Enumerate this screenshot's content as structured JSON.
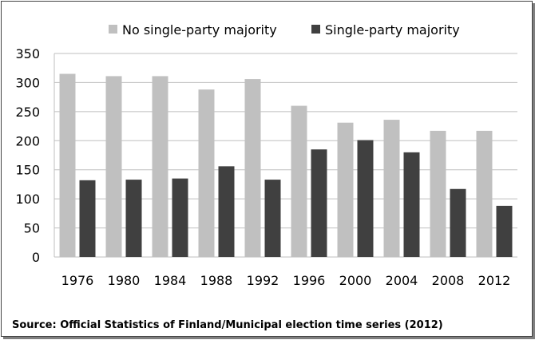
{
  "chart_data": {
    "type": "bar",
    "categories": [
      "1976",
      "1980",
      "1984",
      "1988",
      "1992",
      "1996",
      "2000",
      "2004",
      "2008",
      "2012"
    ],
    "series": [
      {
        "name": "No single-party majority",
        "values": [
          315,
          311,
          311,
          288,
          306,
          260,
          231,
          236,
          217,
          217
        ],
        "color": "#c0c0c0"
      },
      {
        "name": "Single-party majority",
        "values": [
          132,
          133,
          135,
          156,
          133,
          185,
          201,
          180,
          117,
          88
        ],
        "color": "#404040"
      }
    ],
    "ylim": [
      0,
      350
    ],
    "yticks": [
      "0",
      "50",
      "100",
      "150",
      "200",
      "250",
      "300",
      "350"
    ],
    "grid": true,
    "legend_position": "top"
  },
  "source": "Source: Official Statistics of Finland/Municipal election time series (2012)"
}
